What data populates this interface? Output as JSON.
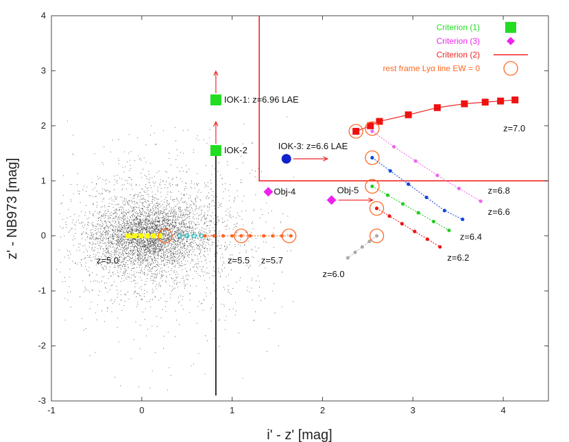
{
  "chart_data": {
    "type": "scatter",
    "title": "",
    "xlabel": "i' - z' [mag]",
    "ylabel": "z' - NB973 [mag]",
    "xlim": [
      -1,
      4.5
    ],
    "ylim": [
      -3,
      4
    ],
    "xticks": [
      "-1",
      "0",
      "1",
      "2",
      "3",
      "4"
    ],
    "xtick_values": [
      -1,
      0,
      1,
      2,
      3,
      4
    ],
    "yticks": [
      "-3",
      "-2",
      "-1",
      "0",
      "1",
      "2",
      "3",
      "4"
    ],
    "ytick_values": [
      -3,
      -2,
      -1,
      0,
      1,
      2,
      3,
      4
    ],
    "colors": {
      "background_points": "#000000",
      "criterion1": "#22dd22",
      "criterion3": "#ee22ee",
      "criterion2": "#ee2222",
      "lya_ew0": "#ff6622",
      "track_z50": "#ffff00",
      "track_z55": "#22bbbb",
      "track_z57": "#ff6622",
      "track_z60": "#aaaaaa",
      "track_z62": "#ee1111",
      "track_z64": "#22cc22",
      "track_z66": "#1144dd",
      "track_z68": "#ee66ee",
      "track_z70": "#ee1111",
      "iok3": "#1122cc"
    },
    "legend": {
      "position": "top-right",
      "entries": [
        {
          "label": "Criterion (1)",
          "marker": "square",
          "color": "#22dd22"
        },
        {
          "label": "Criterion (3)",
          "marker": "diamond",
          "color": "#ee22ee"
        },
        {
          "label": "Criterion (2)",
          "marker": "line",
          "color": "#ee2222"
        },
        {
          "label": "rest frame Lyα line EW = 0",
          "marker": "open-circle",
          "color": "#ff6622"
        }
      ]
    },
    "selection_region": {
      "x_min": 1.3,
      "y_min": 1.0
    },
    "objects": [
      {
        "name": "IOK-1",
        "label": "IOK-1: z=6.96 LAE",
        "x": 0.82,
        "y": 2.47,
        "marker": "square",
        "color": "#22dd22",
        "lower_limit": true
      },
      {
        "name": "IOK-2",
        "label": "IOK-2",
        "x": 0.82,
        "y": 1.55,
        "marker": "square",
        "color": "#22dd22",
        "lower_limit": true
      },
      {
        "name": "IOK-3",
        "label": "IOK-3: z=6.6 LAE",
        "x": 1.6,
        "y": 1.4,
        "marker": "circle",
        "color": "#1122cc",
        "lower_limit_x": true
      },
      {
        "name": "Obj-4",
        "label": "Obj-4",
        "x": 1.4,
        "y": 0.8,
        "marker": "diamond",
        "color": "#ee22ee"
      },
      {
        "name": "Obj-5",
        "label": "Obj-5",
        "x": 2.1,
        "y": 0.65,
        "marker": "diamond",
        "color": "#ee22ee",
        "lower_limit_x": true
      }
    ],
    "tracks": [
      {
        "name": "z=5.0",
        "label": "z=5.0",
        "color": "#ffff00",
        "marker": "square",
        "x": [
          -0.15,
          -0.08,
          -0.01,
          0.06,
          0.13,
          0.2
        ],
        "y": [
          0,
          0,
          0,
          0,
          0,
          0
        ]
      },
      {
        "name": "z=5.5",
        "label": "z=5.5",
        "color": "#22bbbb",
        "marker": "open-circle",
        "x": [
          0.42,
          0.5,
          0.58,
          0.66
        ],
        "y": [
          0,
          0,
          0,
          0
        ]
      },
      {
        "name": "z=5.7",
        "label": "z=5.7",
        "color": "#ff6622",
        "marker": "circle",
        "x": [
          0.7,
          0.8,
          0.9,
          1.0,
          1.1,
          1.2,
          1.35,
          1.45,
          1.55,
          1.65
        ],
        "y": [
          0,
          0,
          0,
          0,
          0,
          0,
          0,
          0,
          0,
          0
        ]
      },
      {
        "name": "z=6.0",
        "label": "z=6.0",
        "color": "#aaaaaa",
        "marker": "circle",
        "x": [
          2.6,
          2.52,
          2.44,
          2.36,
          2.28
        ],
        "y": [
          0,
          -0.1,
          -0.2,
          -0.3,
          -0.4
        ]
      },
      {
        "name": "z=6.2",
        "label": "z=6.2",
        "color": "#ee1111",
        "marker": "circle",
        "x": [
          2.6,
          2.74,
          2.88,
          3.02,
          3.16,
          3.3
        ],
        "y": [
          0.5,
          0.36,
          0.22,
          0.08,
          -0.06,
          -0.2
        ]
      },
      {
        "name": "z=6.4",
        "label": "z=6.4",
        "color": "#22cc22",
        "marker": "circle",
        "x": [
          2.55,
          2.72,
          2.89,
          3.06,
          3.23,
          3.4
        ],
        "y": [
          0.9,
          0.74,
          0.58,
          0.42,
          0.26,
          0.1
        ]
      },
      {
        "name": "z=6.6",
        "label": "z=6.6",
        "color": "#1144dd",
        "marker": "circle",
        "x": [
          2.55,
          2.75,
          2.95,
          3.15,
          3.35,
          3.55
        ],
        "y": [
          1.42,
          1.18,
          0.94,
          0.7,
          0.46,
          0.3
        ]
      },
      {
        "name": "z=6.8",
        "label": "z=6.8",
        "color": "#ee66ee",
        "marker": "circle",
        "x": [
          2.55,
          2.79,
          3.03,
          3.27,
          3.51,
          3.75
        ],
        "y": [
          1.9,
          1.62,
          1.36,
          1.1,
          0.86,
          0.63
        ]
      },
      {
        "name": "z=7.0",
        "label": "z=7.0",
        "color": "#ee1111",
        "marker": "square",
        "x": [
          2.37,
          2.53,
          2.63,
          2.95,
          3.27,
          3.57,
          3.8,
          3.97,
          4.13
        ],
        "y": [
          1.9,
          2.0,
          2.08,
          2.2,
          2.33,
          2.4,
          2.43,
          2.45,
          2.47
        ]
      }
    ],
    "lya_ew0_points": {
      "x": [
        0.26,
        1.1,
        1.63,
        2.37,
        2.55,
        2.55,
        2.55,
        2.6,
        2.6
      ],
      "y": [
        0,
        0,
        0,
        1.9,
        1.95,
        1.42,
        0.9,
        0.5,
        0
      ]
    },
    "track_labels": [
      {
        "text": "z=5.0",
        "x": -0.5,
        "y": -0.5
      },
      {
        "text": "z=5.5",
        "x": 0.95,
        "y": -0.5
      },
      {
        "text": "z=5.7",
        "x": 1.32,
        "y": -0.5
      },
      {
        "text": "z=6.0",
        "x": 2.0,
        "y": -0.75
      },
      {
        "text": "z=6.2",
        "x": 3.38,
        "y": -0.45
      },
      {
        "text": "z=6.4",
        "x": 3.52,
        "y": -0.07
      },
      {
        "text": "z=6.6",
        "x": 3.83,
        "y": 0.38
      },
      {
        "text": "z=6.8",
        "x": 3.83,
        "y": 0.77
      },
      {
        "text": "z=7.0",
        "x": 4.0,
        "y": 1.9
      }
    ]
  }
}
